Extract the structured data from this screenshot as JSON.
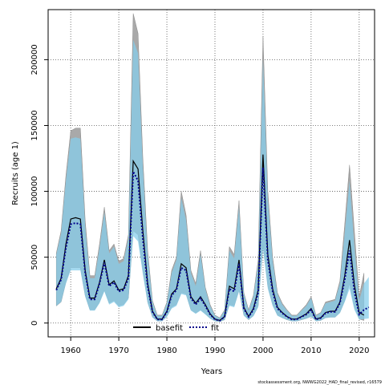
{
  "chart_data": {
    "type": "line",
    "xlabel": "Years",
    "ylabel": "Recruits (age 1)",
    "footer": "stockassessment.org, NWWG2022_HAD_final_revised, r16579",
    "xlim": [
      1955.3,
      2023.2
    ],
    "ylim": [
      -10500,
      238000
    ],
    "x_ticks": [
      1960,
      1970,
      1980,
      1990,
      2000,
      2010,
      2020
    ],
    "y_ticks": [
      0,
      50000,
      100000,
      150000,
      200000
    ],
    "grid": true,
    "legend_position": "bottom-center",
    "series": [
      {
        "name": "basefit",
        "color": "#000000",
        "band_color": "#a9a9a9",
        "x": [
          1957,
          1958,
          1959,
          1960,
          1961,
          1962,
          1963,
          1964,
          1965,
          1966,
          1967,
          1968,
          1969,
          1970,
          1971,
          1972,
          1973,
          1974,
          1975,
          1976,
          1977,
          1978,
          1979,
          1980,
          1981,
          1982,
          1983,
          1984,
          1985,
          1986,
          1987,
          1988,
          1989,
          1990,
          1991,
          1992,
          1993,
          1994,
          1995,
          1996,
          1997,
          1998,
          1999,
          2000,
          2001,
          2002,
          2003,
          2004,
          2005,
          2006,
          2007,
          2008,
          2009,
          2010,
          2011,
          2012,
          2013,
          2014,
          2015,
          2016,
          2017,
          2018,
          2019,
          2020,
          2021
        ],
        "values": [
          26000,
          34000,
          60000,
          79000,
          80000,
          79000,
          40000,
          19000,
          19000,
          31000,
          48000,
          29000,
          32000,
          25000,
          26000,
          36000,
          123000,
          117000,
          70000,
          30000,
          9000,
          3000,
          3000,
          9000,
          22000,
          26000,
          45000,
          42000,
          20000,
          15000,
          20000,
          14000,
          7000,
          3000,
          2000,
          5000,
          28000,
          26000,
          48000,
          12000,
          5000,
          11000,
          25000,
          128000,
          52000,
          26000,
          12000,
          8000,
          5000,
          3000,
          3000,
          5000,
          7000,
          11000,
          3000,
          4000,
          8000,
          9000,
          9000,
          16000,
          36000,
          63000,
          29000,
          8000,
          6000
        ],
        "low": [
          13000,
          16000,
          31000,
          42000,
          42000,
          42000,
          21000,
          10000,
          10000,
          16000,
          25000,
          15000,
          17000,
          13000,
          14000,
          19000,
          70000,
          67000,
          40000,
          16000,
          4500,
          1500,
          1500,
          5000,
          12000,
          14000,
          23000,
          22000,
          10000,
          7500,
          10000,
          7000,
          3500,
          1500,
          1000,
          2500,
          14000,
          13000,
          25000,
          6000,
          2500,
          5500,
          13000,
          60000,
          28000,
          14000,
          6000,
          4000,
          2500,
          1500,
          1500,
          2500,
          3500,
          5000,
          1500,
          2000,
          4000,
          4500,
          4500,
          8000,
          17000,
          30000,
          12000,
          3000,
          2000
        ],
        "high": [
          53000,
          70000,
          112000,
          146000,
          148000,
          148000,
          78000,
          36000,
          36000,
          60000,
          88000,
          55000,
          60000,
          47000,
          49000,
          67000,
          235000,
          220000,
          125000,
          55000,
          17000,
          6000,
          6000,
          16000,
          40000,
          50000,
          100000,
          82000,
          40000,
          30000,
          55000,
          27000,
          14000,
          6000,
          4000,
          10000,
          58000,
          52000,
          93000,
          23000,
          10000,
          21000,
          48000,
          218000,
          100000,
          50000,
          23000,
          15000,
          10000,
          6000,
          6000,
          10000,
          14000,
          20000,
          6000,
          8000,
          16000,
          17000,
          18000,
          32000,
          75000,
          120000,
          70000,
          20000,
          38000
        ]
      },
      {
        "name": "fit",
        "color": "#00008b",
        "band_color": "#87ceeb",
        "x": [
          1957,
          1958,
          1959,
          1960,
          1961,
          1962,
          1963,
          1964,
          1965,
          1966,
          1967,
          1968,
          1969,
          1970,
          1971,
          1972,
          1973,
          1974,
          1975,
          1976,
          1977,
          1978,
          1979,
          1980,
          1981,
          1982,
          1983,
          1984,
          1985,
          1986,
          1987,
          1988,
          1989,
          1990,
          1991,
          1992,
          1993,
          1994,
          1995,
          1996,
          1997,
          1998,
          1999,
          2000,
          2001,
          2002,
          2003,
          2004,
          2005,
          2006,
          2007,
          2008,
          2009,
          2010,
          2011,
          2012,
          2013,
          2014,
          2015,
          2016,
          2017,
          2018,
          2019,
          2020,
          2021,
          2022
        ],
        "values": [
          25000,
          33000,
          57000,
          75000,
          76000,
          75000,
          38000,
          18000,
          18000,
          30000,
          46000,
          28000,
          31000,
          24000,
          25000,
          34000,
          115000,
          108000,
          64000,
          28000,
          8500,
          2800,
          2800,
          8500,
          21000,
          25000,
          42000,
          40000,
          19000,
          14000,
          19000,
          13000,
          6500,
          2800,
          1800,
          4700,
          26000,
          24000,
          45000,
          11000,
          4700,
          10000,
          23000,
          118000,
          48000,
          24000,
          11000,
          7500,
          4700,
          2800,
          2800,
          4700,
          6500,
          10000,
          2800,
          3800,
          7500,
          8500,
          8500,
          15000,
          33000,
          55000,
          24000,
          6500,
          10000,
          12000
        ],
        "low": [
          13000,
          16000,
          30000,
          40000,
          40000,
          40000,
          20000,
          9500,
          9500,
          15000,
          24000,
          14000,
          16000,
          12000,
          13000,
          18000,
          66000,
          62000,
          37000,
          15000,
          4300,
          1400,
          1400,
          4700,
          11000,
          13000,
          22000,
          21000,
          9500,
          7000,
          9500,
          6500,
          3300,
          1400,
          900,
          2400,
          13000,
          12000,
          24000,
          5500,
          2400,
          5200,
          12000,
          56000,
          26000,
          13000,
          5500,
          3800,
          2400,
          1400,
          1400,
          2400,
          3300,
          4800,
          1400,
          1900,
          3800,
          4300,
          4300,
          7500,
          16000,
          26000,
          10000,
          2600,
          3000,
          3500
        ],
        "high": [
          52000,
          68000,
          108000,
          140000,
          141000,
          140000,
          73000,
          34000,
          34000,
          57000,
          84000,
          53000,
          58000,
          45000,
          47000,
          64000,
          215000,
          205000,
          118000,
          52000,
          16000,
          5600,
          5600,
          15000,
          38000,
          48000,
          95000,
          78000,
          38000,
          28000,
          52000,
          26000,
          13000,
          5600,
          3700,
          9400,
          55000,
          49000,
          88000,
          22000,
          9400,
          20000,
          45000,
          200000,
          95000,
          47000,
          22000,
          14000,
          9400,
          5600,
          5600,
          9400,
          13000,
          19000,
          5600,
          7500,
          15000,
          16000,
          17000,
          30000,
          68000,
          108000,
          58000,
          17000,
          30000,
          35000
        ]
      }
    ]
  }
}
